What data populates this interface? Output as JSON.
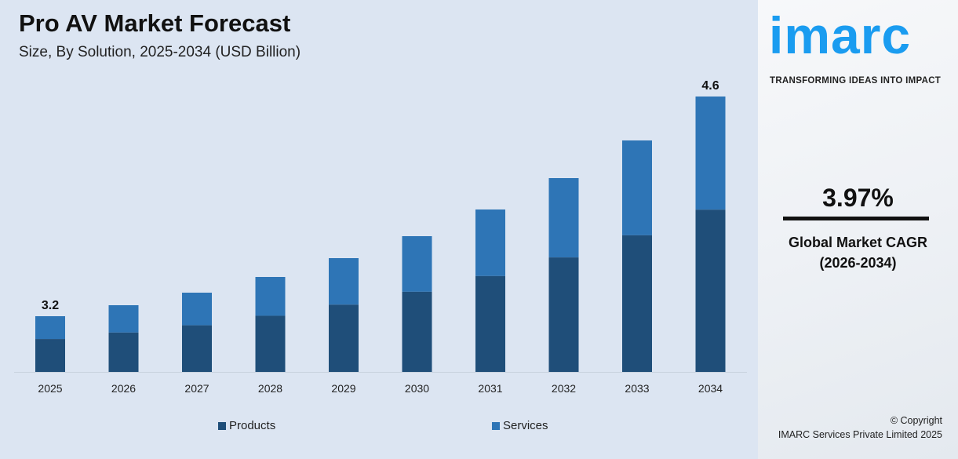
{
  "header": {
    "title": "Pro AV Market Forecast",
    "subtitle": "Size, By Solution, 2025-2034 (USD Billion)"
  },
  "chart_data": {
    "type": "bar",
    "stacked": true,
    "categories": [
      "2025",
      "2026",
      "2027",
      "2028",
      "2029",
      "2030",
      "2031",
      "2032",
      "2033",
      "2034"
    ],
    "series": [
      {
        "name": "Products",
        "color": "#1f4e79",
        "values": [
          1.89,
          1.93,
          1.97,
          2.04,
          2.11,
          2.19,
          2.29,
          2.41,
          2.55,
          2.71
        ]
      },
      {
        "name": "Services",
        "color": "#2e75b6",
        "values": [
          1.31,
          1.34,
          1.38,
          1.41,
          1.46,
          1.52,
          1.59,
          1.67,
          1.77,
          1.89
        ]
      }
    ],
    "totals": [
      3.2,
      3.27,
      3.35,
      3.45,
      3.57,
      3.71,
      3.88,
      4.08,
      4.32,
      4.6
    ],
    "data_labels": {
      "0": "3.2",
      "9": "4.6"
    },
    "title": "Pro AV Market Forecast",
    "xlabel": "",
    "ylabel": "",
    "grid": false,
    "legend": "bottom"
  },
  "legend": {
    "products": "Products",
    "services": "Services"
  },
  "brand": {
    "logo": "imarc",
    "tagline": "TRANSFORMING IDEAS INTO IMPACT",
    "color": "#1a9cf0"
  },
  "cagr": {
    "value": "3.97%",
    "label": "Global Market CAGR",
    "period": "(2026-2034)"
  },
  "footer": {
    "copyright": "© Copyright",
    "company": "IMARC Services Private Limited 2025"
  }
}
